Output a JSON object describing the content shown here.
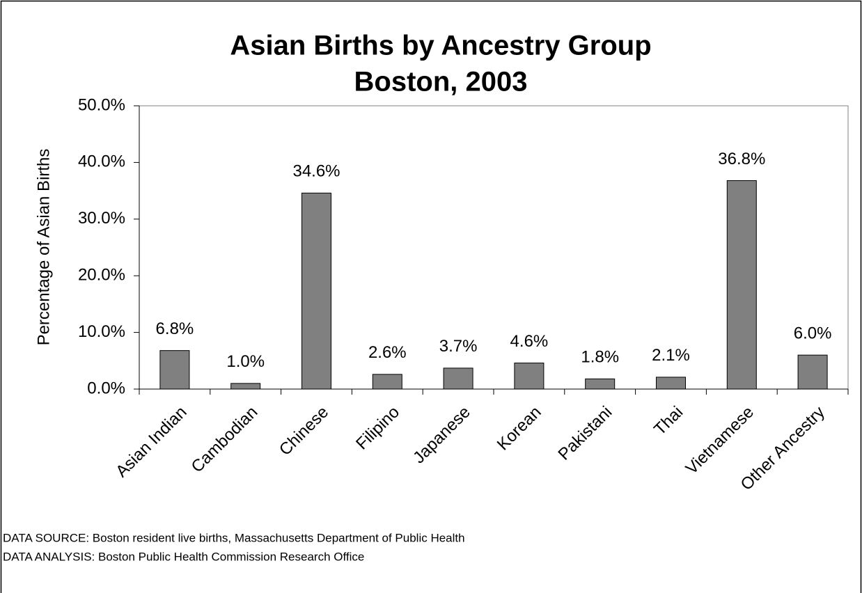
{
  "chart_data": {
    "type": "bar",
    "title": "Asian Births by Ancestry Group",
    "subtitle": "Boston, 2003",
    "ylabel": "Percentage of Asian Births",
    "categories": [
      "Asian Indian",
      "Cambodian",
      "Chinese",
      "Filipino",
      "Japanese",
      "Korean",
      "Pakistani",
      "Thai",
      "Vietnamese",
      "Other Ancestry"
    ],
    "values": [
      6.8,
      1.0,
      34.6,
      2.6,
      3.7,
      4.6,
      1.8,
      2.1,
      36.8,
      6.0
    ],
    "value_labels": [
      "6.8%",
      "1.0%",
      "34.6%",
      "2.6%",
      "3.7%",
      "4.6%",
      "1.8%",
      "2.1%",
      "36.8%",
      "6.0%"
    ],
    "color": "#808080",
    "ylim": [
      0,
      50
    ],
    "yticks": [
      {
        "value": 0,
        "label": "0.0%"
      },
      {
        "value": 10,
        "label": "10.0%"
      },
      {
        "value": 20,
        "label": "20.0%"
      },
      {
        "value": 30,
        "label": "30.0%"
      },
      {
        "value": 40,
        "label": "40.0%"
      },
      {
        "value": 50,
        "label": "50.0%"
      }
    ],
    "notes": [
      "DATA SOURCE:  Boston resident live births, Massachusetts Department of Public Health",
      "DATA ANALYSIS:  Boston Public Health Commission Research Office"
    ]
  }
}
